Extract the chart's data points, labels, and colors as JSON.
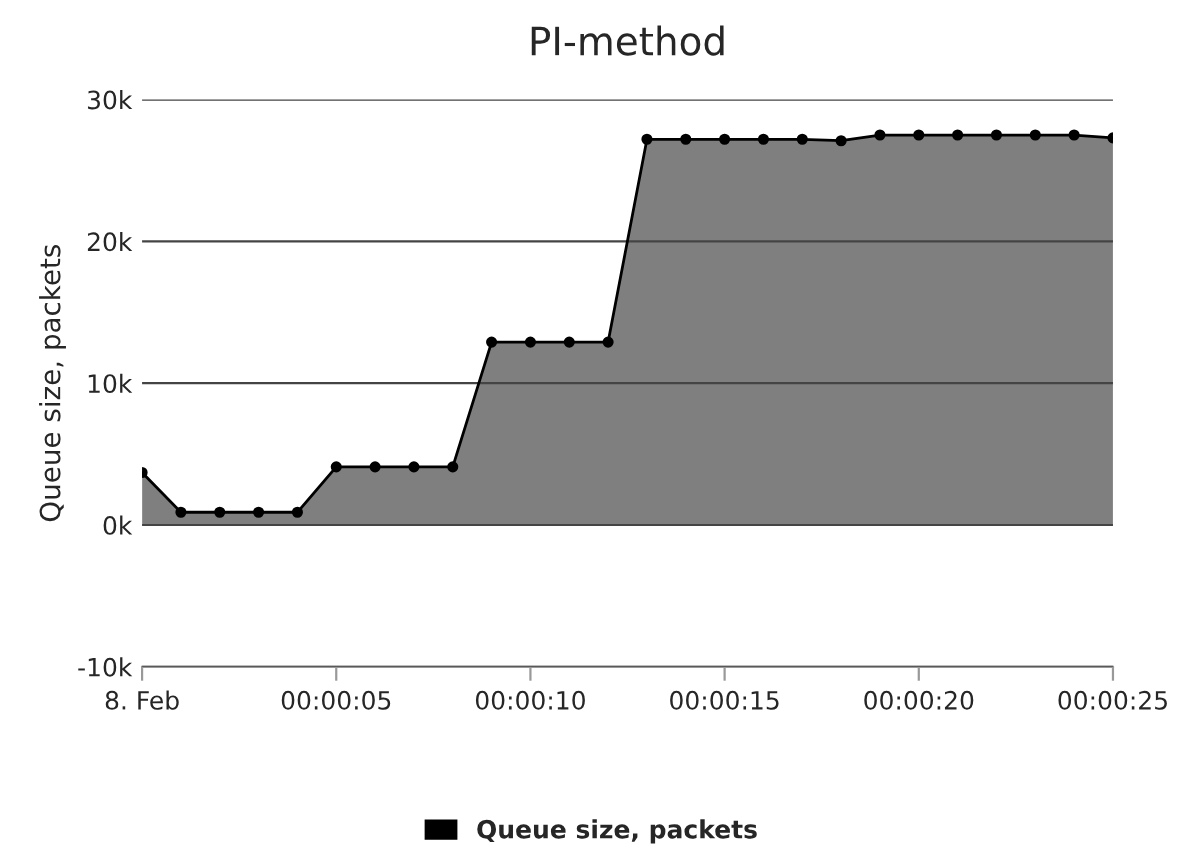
{
  "chart_data": {
    "type": "area",
    "title": "PI-method",
    "ylabel": "Queue size, packets",
    "x": [
      0,
      1,
      2,
      3,
      4,
      5,
      6,
      7,
      8,
      9,
      10,
      11,
      12,
      13,
      14,
      15,
      16,
      17,
      18,
      19,
      20,
      21,
      22,
      23,
      24,
      25
    ],
    "series": [
      {
        "name": "Queue size, packets",
        "color": "#000000",
        "values": [
          3.7,
          0.9,
          0.9,
          0.9,
          0.9,
          4.1,
          4.1,
          4.1,
          4.1,
          12.9,
          12.9,
          12.9,
          12.9,
          27.2,
          27.2,
          27.2,
          27.2,
          27.2,
          27.1,
          27.5,
          27.5,
          27.5,
          27.5,
          27.5,
          27.5,
          27.3
        ]
      }
    ],
    "xlim": [
      0,
      25
    ],
    "xticks": [
      {
        "value": 0,
        "label": "8. Feb"
      },
      {
        "value": 5,
        "label": "00:00:05"
      },
      {
        "value": 10,
        "label": "00:00:10"
      },
      {
        "value": 15,
        "label": "00:00:15"
      },
      {
        "value": 20,
        "label": "00:00:20"
      },
      {
        "value": 25,
        "label": "00:00:25"
      }
    ],
    "ylim": [
      -10,
      30
    ],
    "yticks": [
      {
        "value": -10,
        "label": "-10k"
      },
      {
        "value": 0,
        "label": "0k"
      },
      {
        "value": 10,
        "label": "10k"
      },
      {
        "value": 20,
        "label": "20k"
      },
      {
        "value": 30,
        "label": "30k"
      }
    ],
    "grid": "y",
    "legend": "bottom",
    "marker": "circle",
    "line_style": "solid"
  }
}
